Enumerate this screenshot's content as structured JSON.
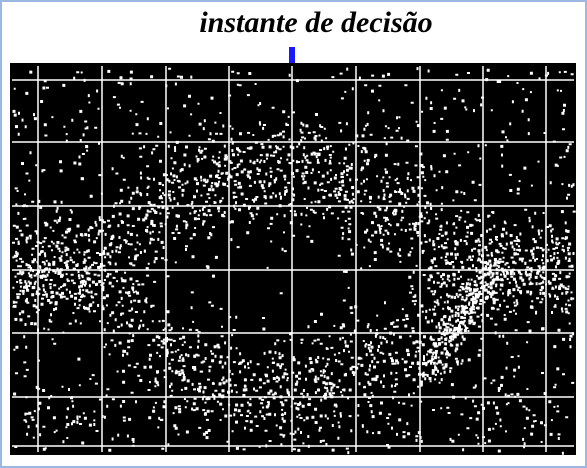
{
  "header": {
    "title": "instante de decisão"
  }
}
